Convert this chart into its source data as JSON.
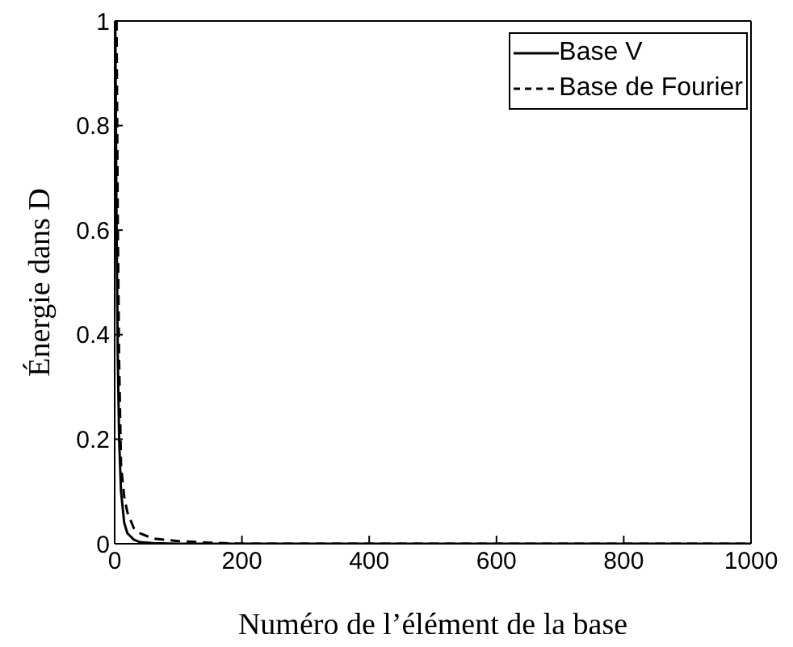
{
  "chart_data": {
    "type": "line",
    "xlabel": "Numéro de l’élément de la base",
    "ylabel": "Énergie dans D",
    "xlim": [
      0,
      1000
    ],
    "xticks": [
      0,
      200,
      400,
      600,
      800,
      1000
    ],
    "ylim": [
      0,
      1
    ],
    "yticks": [
      0,
      0.2,
      0.4,
      0.6,
      0.8,
      1
    ],
    "legend": "top right",
    "series": [
      {
        "name": "Base V",
        "color": "#000000",
        "line_style": "solid",
        "x": [
          1,
          3,
          5,
          7,
          10,
          15,
          20,
          30,
          40,
          60,
          100,
          200,
          400,
          600,
          800,
          1000
        ],
        "values": [
          1,
          0.6,
          0.35,
          0.2,
          0.1,
          0.04,
          0.02,
          0.008,
          0.003,
          0.001,
          0,
          0,
          0,
          0,
          0,
          0
        ]
      },
      {
        "name": "Base de Fourier",
        "color": "#000000",
        "line_style": "dashed",
        "x": [
          3,
          5,
          7,
          10,
          15,
          20,
          30,
          40,
          60,
          100,
          150,
          200,
          400,
          600,
          800,
          1000
        ],
        "values": [
          1,
          0.6,
          0.35,
          0.15,
          0.09,
          0.06,
          0.03,
          0.02,
          0.01,
          0.005,
          0.002,
          0,
          0,
          0,
          0,
          0
        ]
      }
    ]
  }
}
